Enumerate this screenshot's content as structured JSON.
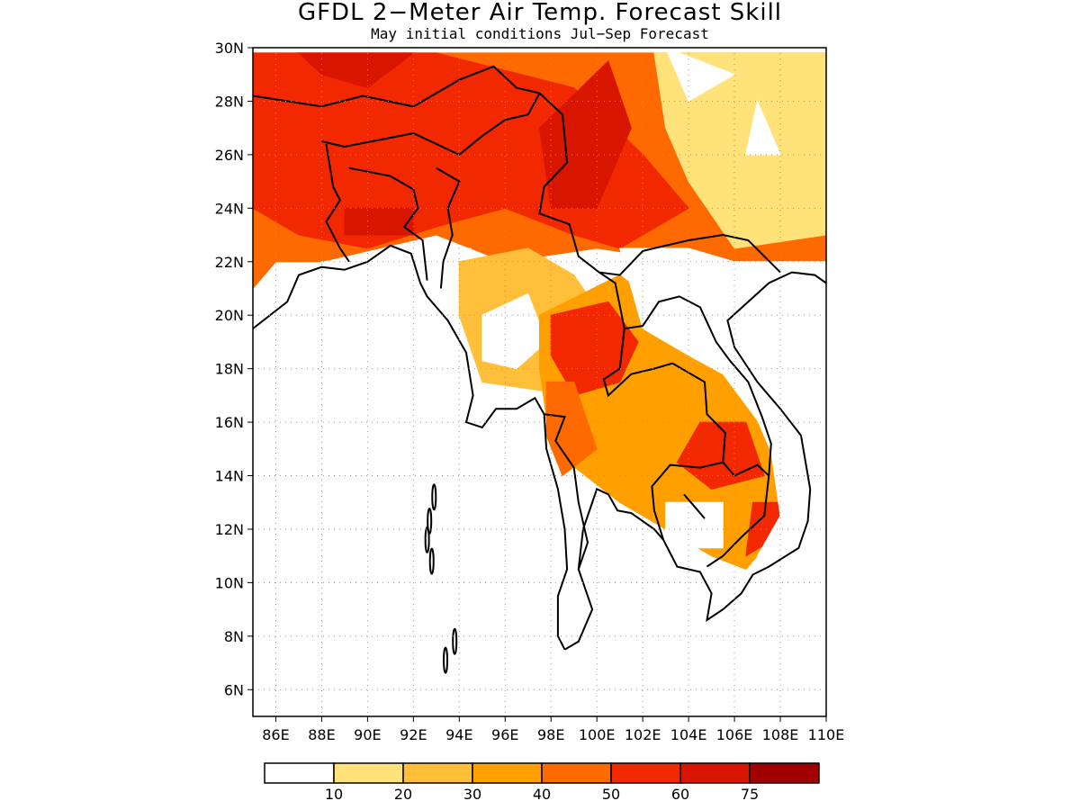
{
  "title": "GFDL 2−Meter Air Temp. Forecast Skill",
  "subtitle": "May initial conditions   Jul−Sep Forecast",
  "map": {
    "lon_range": [
      85,
      110
    ],
    "lat_range": [
      5,
      30
    ],
    "lon_ticks": [
      "86E",
      "88E",
      "90E",
      "92E",
      "94E",
      "96E",
      "98E",
      "100E",
      "102E",
      "104E",
      "106E",
      "108E",
      "110E"
    ],
    "lat_ticks": [
      "30N",
      "28N",
      "26N",
      "24N",
      "22N",
      "20N",
      "18N",
      "16N",
      "14N",
      "12N",
      "10N",
      "8N",
      "6N"
    ]
  },
  "legend": {
    "labels": [
      "10",
      "20",
      "30",
      "40",
      "50",
      "60",
      "75"
    ],
    "colors": [
      "#ffffff",
      "#ffe27a",
      "#ffbf3b",
      "#ffa000",
      "#ff6a00",
      "#f22800",
      "#d81600",
      "#a00000"
    ]
  },
  "skill_regions": [
    {
      "name": "north-belt",
      "level": 4,
      "coords": [
        [
          85,
          29.8
        ],
        [
          110,
          29.8
        ],
        [
          110,
          22
        ],
        [
          104,
          22
        ],
        [
          100,
          22.5
        ],
        [
          96,
          22
        ],
        [
          93,
          23
        ],
        [
          88,
          22
        ],
        [
          86,
          22
        ],
        [
          85,
          21
        ]
      ]
    },
    {
      "name": "northeast-high",
      "level": 5,
      "coords": [
        [
          85,
          29.8
        ],
        [
          93,
          29.8
        ],
        [
          99,
          28.5
        ],
        [
          102,
          26
        ],
        [
          104,
          24
        ],
        [
          101,
          22.5
        ],
        [
          99,
          23
        ],
        [
          96,
          24
        ],
        [
          93,
          23.3
        ],
        [
          90,
          22.5
        ],
        [
          87,
          23
        ],
        [
          85,
          24
        ]
      ]
    },
    {
      "name": "burma-core",
      "level": 6,
      "coords": [
        [
          97.5,
          27
        ],
        [
          100.5,
          29.5
        ],
        [
          101.5,
          27
        ],
        [
          100,
          24
        ],
        [
          98,
          24
        ]
      ]
    },
    {
      "name": "nw-peak",
      "level": 6,
      "coords": [
        [
          87,
          29.8
        ],
        [
          92,
          29.8
        ],
        [
          90,
          28.5
        ],
        [
          88,
          29
        ]
      ]
    },
    {
      "name": "bengal-peak",
      "level": 6,
      "coords": [
        [
          89,
          24
        ],
        [
          92,
          24
        ],
        [
          92,
          23
        ],
        [
          89,
          23
        ]
      ]
    },
    {
      "name": "ne-pale",
      "level": 1,
      "coords": [
        [
          102.5,
          29.8
        ],
        [
          110,
          29.8
        ],
        [
          110,
          23
        ],
        [
          106,
          22.5
        ],
        [
          104,
          25
        ],
        [
          103,
          27
        ]
      ]
    },
    {
      "name": "ne-white",
      "level": 0,
      "coords": [
        [
          103,
          30
        ],
        [
          106,
          29
        ],
        [
          104,
          28
        ]
      ]
    },
    {
      "name": "ne-white2",
      "level": 0,
      "coords": [
        [
          107,
          28
        ],
        [
          108,
          26
        ],
        [
          106.5,
          26
        ]
      ]
    },
    {
      "name": "bengal-white",
      "level": 0,
      "coords": [
        [
          88,
          22
        ],
        [
          94.5,
          22.5
        ],
        [
          96,
          20.5
        ],
        [
          98,
          18
        ],
        [
          94,
          18
        ],
        [
          89.5,
          21
        ]
      ]
    },
    {
      "name": "central-pale",
      "level": 2,
      "coords": [
        [
          94,
          22
        ],
        [
          97,
          22.5
        ],
        [
          99,
          21.5
        ],
        [
          101,
          19
        ],
        [
          99,
          17
        ],
        [
          95,
          17.5
        ],
        [
          94,
          20
        ]
      ]
    },
    {
      "name": "central-white",
      "level": 0,
      "coords": [
        [
          95,
          20
        ],
        [
          97,
          20.8
        ],
        [
          97.8,
          19
        ],
        [
          96.5,
          18
        ],
        [
          95,
          18.3
        ]
      ]
    },
    {
      "name": "thai-base",
      "level": 3,
      "coords": [
        [
          97.5,
          20
        ],
        [
          101,
          21.5
        ],
        [
          104,
          19.5
        ],
        [
          105.5,
          18
        ],
        [
          107,
          16
        ],
        [
          108,
          14
        ],
        [
          108,
          12
        ],
        [
          106.5,
          10.5
        ],
        [
          105,
          11
        ],
        [
          103,
          12
        ],
        [
          101,
          13
        ],
        [
          98,
          15
        ],
        [
          97.5,
          18
        ]
      ]
    },
    {
      "name": "thai-north-high",
      "level": 5,
      "coords": [
        [
          98,
          20
        ],
        [
          100.5,
          20.5
        ],
        [
          101.8,
          19
        ],
        [
          101,
          17.5
        ],
        [
          99,
          17
        ],
        [
          98,
          18.5
        ]
      ]
    },
    {
      "name": "thai-west-high",
      "level": 4,
      "coords": [
        [
          97.8,
          17.5
        ],
        [
          99,
          17.5
        ],
        [
          100,
          15
        ],
        [
          98.5,
          14
        ],
        [
          97.8,
          15.5
        ]
      ]
    },
    {
      "name": "cambodia-high",
      "level": 5,
      "coords": [
        [
          104.5,
          16
        ],
        [
          106.5,
          16
        ],
        [
          107.3,
          14
        ],
        [
          105,
          13.5
        ],
        [
          103.5,
          14.5
        ]
      ]
    },
    {
      "name": "vietnam-south",
      "level": 5,
      "coords": [
        [
          106.8,
          13
        ],
        [
          108.2,
          13
        ],
        [
          107.5,
          11.5
        ],
        [
          106.5,
          11
        ]
      ]
    },
    {
      "name": "laos-white",
      "level": 0,
      "coords": [
        [
          101,
          22.5
        ],
        [
          104,
          22.5
        ],
        [
          106,
          22
        ],
        [
          110,
          22
        ],
        [
          110,
          5
        ],
        [
          107.5,
          5
        ],
        [
          107,
          11
        ],
        [
          108,
          12.5
        ],
        [
          107.5,
          15.5
        ],
        [
          105.5,
          17.8
        ],
        [
          104,
          18.5
        ],
        [
          102,
          19.5
        ]
      ]
    },
    {
      "name": "cambodia-white",
      "level": 0,
      "coords": [
        [
          103,
          13
        ],
        [
          105.5,
          13
        ],
        [
          105.5,
          11.3
        ],
        [
          103,
          11.3
        ]
      ]
    }
  ]
}
